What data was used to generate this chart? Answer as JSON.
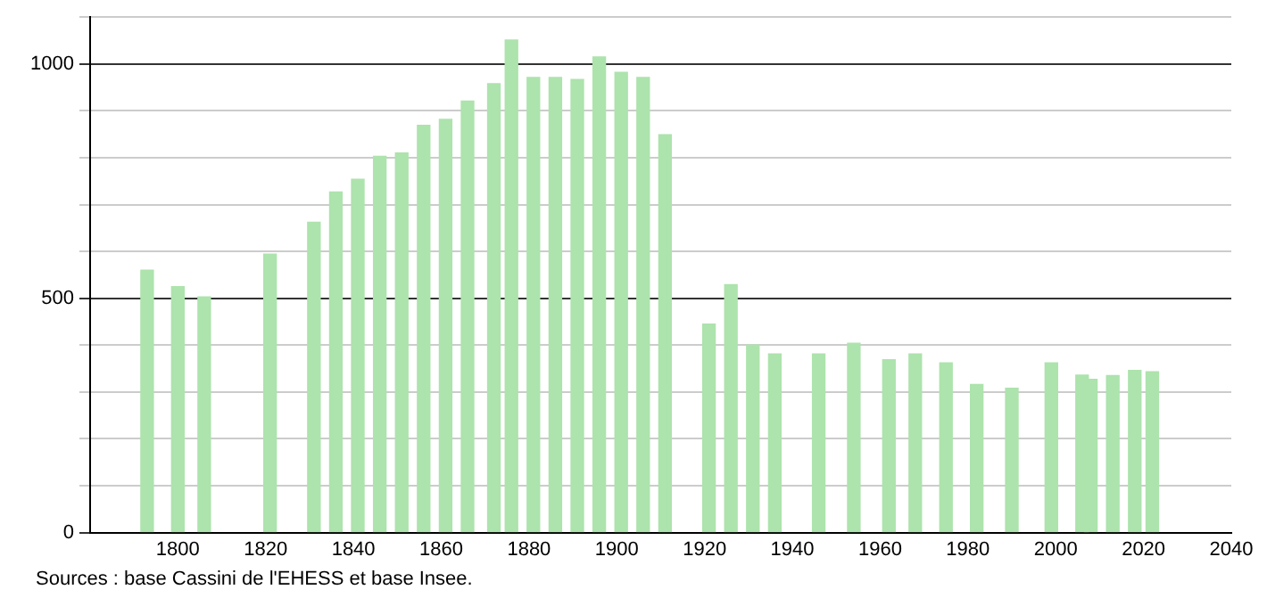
{
  "chart_data": {
    "type": "bar",
    "color": "#ade3ad",
    "x": [
      1793,
      1800,
      1806,
      1821,
      1831,
      1836,
      1841,
      1846,
      1851,
      1856,
      1861,
      1866,
      1872,
      1876,
      1881,
      1886,
      1891,
      1896,
      1901,
      1906,
      1911,
      1921,
      1926,
      1931,
      1936,
      1946,
      1954,
      1962,
      1968,
      1975,
      1982,
      1990,
      1999,
      2006,
      2008,
      2013,
      2018,
      2022
    ],
    "values": [
      560,
      525,
      503,
      594,
      662,
      727,
      754,
      803,
      810,
      869,
      882,
      921,
      958,
      1051,
      971,
      971,
      967,
      1015,
      982,
      971,
      849,
      445,
      529,
      400,
      381,
      381,
      404,
      369,
      381,
      362,
      316,
      308,
      362,
      336,
      327,
      335,
      346,
      343
    ],
    "xlim": [
      1780,
      2040
    ],
    "xticks": [
      1800,
      1820,
      1840,
      1860,
      1880,
      1900,
      1920,
      1940,
      1960,
      1980,
      2000,
      2020,
      2040
    ],
    "ylim": [
      0,
      1100
    ],
    "yticks": [
      0,
      {
        "value": 100,
        "label": null
      },
      {
        "value": 200,
        "label": null
      },
      {
        "value": 300,
        "label": null
      },
      {
        "value": 400,
        "label": null
      },
      500,
      {
        "value": 600,
        "label": null
      },
      {
        "value": 700,
        "label": null
      },
      {
        "value": 800,
        "label": null
      },
      {
        "value": 900,
        "label": null
      },
      1000,
      {
        "value": 1100,
        "label": null
      }
    ],
    "grid": "y",
    "legend": false,
    "annotations": [
      "Sources : base Cassini de l'EHESS et base Insee."
    ]
  }
}
